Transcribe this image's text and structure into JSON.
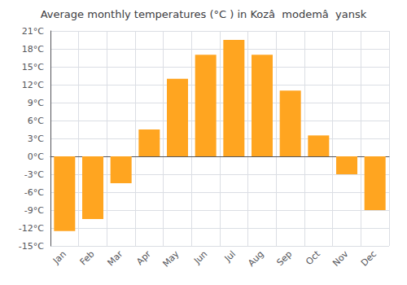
{
  "chart_data": {
    "type": "bar",
    "title": "Average monthly temperatures (°C ) in Kozâ  modemâ  yansk",
    "categories": [
      "Jan",
      "Feb",
      "Mar",
      "Apr",
      "May",
      "Jun",
      "Jul",
      "Aug",
      "Sep",
      "Oct",
      "Nov",
      "Dec"
    ],
    "values": [
      -12.5,
      -10.5,
      -4.5,
      4.5,
      13.0,
      17.0,
      19.5,
      17.0,
      11.0,
      3.5,
      -3.0,
      -9.0
    ],
    "color": "#FFA520",
    "ylim": [
      -15,
      21
    ],
    "yticks": [
      {
        "value": -15,
        "label": "-15°C"
      },
      {
        "value": -12,
        "label": "-12°C"
      },
      {
        "value": -9,
        "label": "-9°C"
      },
      {
        "value": -6,
        "label": "-6°C"
      },
      {
        "value": -3,
        "label": "-3°C"
      },
      {
        "value": 0,
        "label": "0°C"
      },
      {
        "value": 3,
        "label": "3°C"
      },
      {
        "value": 6,
        "label": "6°C"
      },
      {
        "value": 9,
        "label": "9°C"
      },
      {
        "value": 12,
        "label": "12°C"
      },
      {
        "value": 15,
        "label": "15°C"
      },
      {
        "value": 18,
        "label": "18°C"
      },
      {
        "value": 21,
        "label": "21°C"
      }
    ],
    "grid": true
  }
}
